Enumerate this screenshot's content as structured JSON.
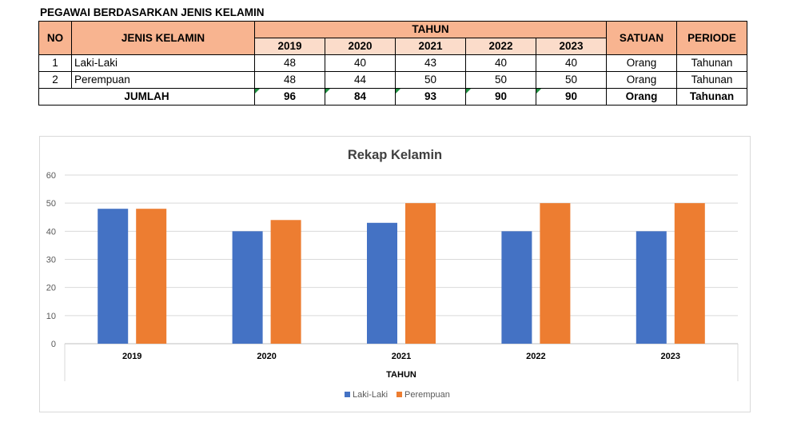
{
  "sheet_title": "PEGAWAI BERDASARKAN JENIS KELAMIN",
  "table": {
    "headers": {
      "no": "NO",
      "jenis_kelamin": "JENIS KELAMIN",
      "tahun": "TAHUN",
      "years": [
        "2019",
        "2020",
        "2021",
        "2022",
        "2023"
      ],
      "satuan": "SATUAN",
      "periode": "PERIODE"
    },
    "rows": [
      {
        "no": "1",
        "label": "Laki-Laki",
        "values": [
          "48",
          "40",
          "43",
          "40",
          "40"
        ],
        "satuan": "Orang",
        "periode": "Tahunan"
      },
      {
        "no": "2",
        "label": "Perempuan",
        "values": [
          "48",
          "44",
          "50",
          "50",
          "50"
        ],
        "satuan": "Orang",
        "periode": "Tahunan"
      }
    ],
    "total": {
      "label": "JUMLAH",
      "values": [
        "96",
        "84",
        "93",
        "90",
        "90"
      ],
      "satuan": "Orang",
      "periode": "Tahunan"
    }
  },
  "chart_data": {
    "type": "bar",
    "title": "Rekap Kelamin",
    "xlabel": "TAHUN",
    "ylabel": "",
    "categories": [
      "2019",
      "2020",
      "2021",
      "2022",
      "2023"
    ],
    "series": [
      {
        "name": "Laki-Laki",
        "values": [
          48,
          40,
          43,
          40,
          40
        ],
        "color": "#4472c4"
      },
      {
        "name": "Perempuan",
        "values": [
          48,
          44,
          50,
          50,
          50
        ],
        "color": "#ed7d31"
      }
    ],
    "ylim": [
      0,
      60
    ],
    "yticks": [
      0,
      10,
      20,
      30,
      40,
      50,
      60
    ],
    "grid": true,
    "legend": "bottom"
  }
}
